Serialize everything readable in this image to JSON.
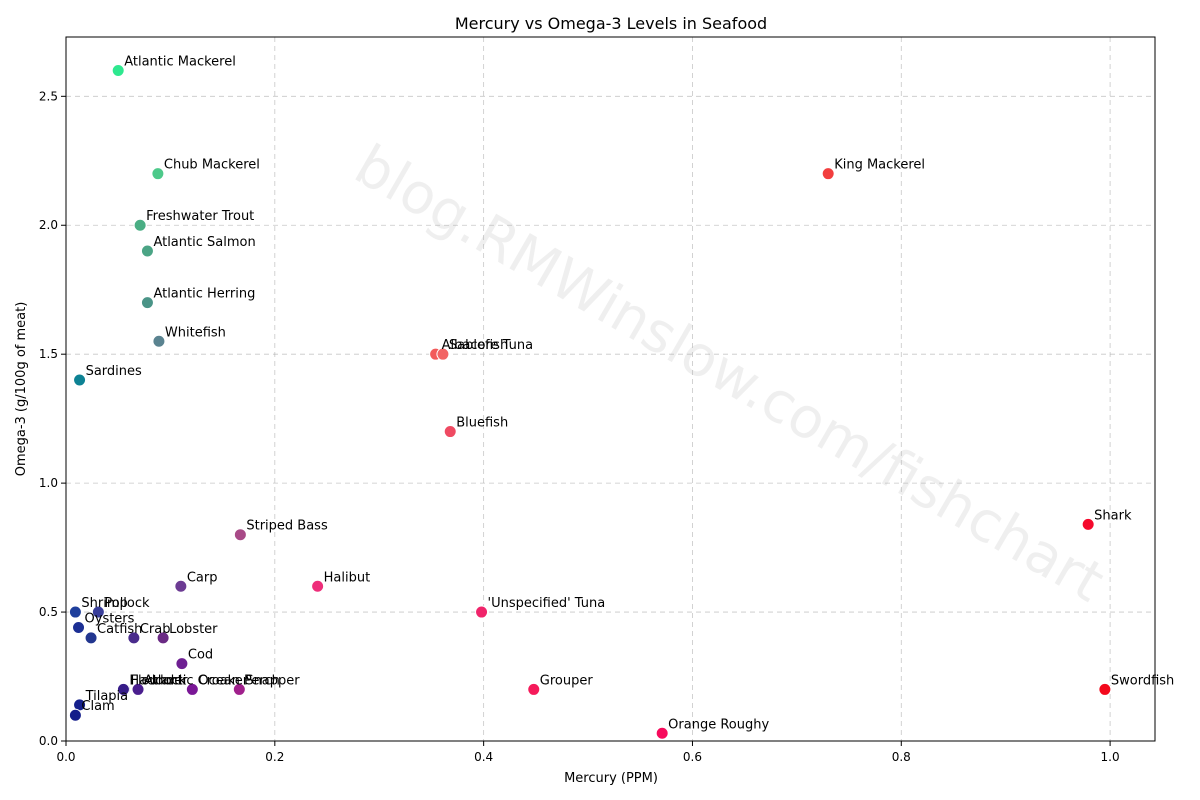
{
  "watermark": "blog.RMWinslow.com/fishchart",
  "chart_data": {
    "type": "scatter",
    "title": "Mercury vs Omega-3 Levels in Seafood",
    "xlabel": "Mercury (PPM)",
    "ylabel": "Omega-3 (g/100g of meat)",
    "xlim": [
      0.0,
      1.043
    ],
    "ylim": [
      0.0,
      2.73
    ],
    "xticks": [
      0.0,
      0.2,
      0.4,
      0.6,
      0.8,
      1.0
    ],
    "yticks": [
      0.0,
      0.5,
      1.0,
      1.5,
      2.0,
      2.5
    ],
    "grid": true,
    "points": [
      {
        "name": "Atlantic Mackerel",
        "x": 0.05,
        "y": 2.6,
        "color": "#2ee88f"
      },
      {
        "name": "Chub Mackerel",
        "x": 0.088,
        "y": 2.2,
        "color": "#4dc98a"
      },
      {
        "name": "King Mackerel",
        "x": 0.73,
        "y": 2.2,
        "color": "#f23e3e"
      },
      {
        "name": "Freshwater Trout",
        "x": 0.071,
        "y": 2.0,
        "color": "#4aae84"
      },
      {
        "name": "Atlantic Salmon",
        "x": 0.078,
        "y": 1.9,
        "color": "#4ba485"
      },
      {
        "name": "Atlantic Herring",
        "x": 0.078,
        "y": 1.7,
        "color": "#4a9487"
      },
      {
        "name": "Whitefish",
        "x": 0.089,
        "y": 1.55,
        "color": "#5a8390"
      },
      {
        "name": "Sardines",
        "x": 0.013,
        "y": 1.4,
        "color": "#0d8294"
      },
      {
        "name": "Albacore Tuna",
        "x": 0.354,
        "y": 1.5,
        "color": "#f25a5a"
      },
      {
        "name": "Sablefish",
        "x": 0.361,
        "y": 1.5,
        "color": "#f26464"
      },
      {
        "name": "Bluefish",
        "x": 0.368,
        "y": 1.2,
        "color": "#ef4a62"
      },
      {
        "name": "Shark",
        "x": 0.979,
        "y": 0.84,
        "color": "#f5092c"
      },
      {
        "name": "Striped Bass",
        "x": 0.167,
        "y": 0.8,
        "color": "#a84a87"
      },
      {
        "name": "Carp",
        "x": 0.11,
        "y": 0.6,
        "color": "#6c3b93"
      },
      {
        "name": "Halibut",
        "x": 0.241,
        "y": 0.6,
        "color": "#ee2e7a"
      },
      {
        "name": "Shrimp",
        "x": 0.009,
        "y": 0.5,
        "color": "#1f3f9c"
      },
      {
        "name": "Pollock",
        "x": 0.031,
        "y": 0.5,
        "color": "#3a3f9a"
      },
      {
        "name": "'Unspecified' Tuna",
        "x": 0.398,
        "y": 0.5,
        "color": "#f0246a"
      },
      {
        "name": "Oysters",
        "x": 0.012,
        "y": 0.44,
        "color": "#1c2f94"
      },
      {
        "name": "Catfish",
        "x": 0.024,
        "y": 0.4,
        "color": "#22368f"
      },
      {
        "name": "Crab",
        "x": 0.065,
        "y": 0.4,
        "color": "#4a2c8c"
      },
      {
        "name": "Lobster",
        "x": 0.093,
        "y": 0.4,
        "color": "#6a2a84"
      },
      {
        "name": "Cod",
        "x": 0.111,
        "y": 0.3,
        "color": "#6e1f92"
      },
      {
        "name": "Flounder",
        "x": 0.056,
        "y": 0.2,
        "color": "#3a1f8c"
      },
      {
        "name": "Haddock",
        "x": 0.055,
        "y": 0.2,
        "color": "#361c88"
      },
      {
        "name": "Atlantic Croaker",
        "x": 0.069,
        "y": 0.2,
        "color": "#4a1e8e"
      },
      {
        "name": "Ocean Perch",
        "x": 0.121,
        "y": 0.2,
        "color": "#7a1796"
      },
      {
        "name": "Snapper",
        "x": 0.166,
        "y": 0.2,
        "color": "#a0208c"
      },
      {
        "name": "Grouper",
        "x": 0.448,
        "y": 0.2,
        "color": "#f51a5a"
      },
      {
        "name": "Swordfish",
        "x": 0.995,
        "y": 0.2,
        "color": "#f3091c"
      },
      {
        "name": "Tilapia",
        "x": 0.013,
        "y": 0.14,
        "color": "#15208c"
      },
      {
        "name": "Clam",
        "x": 0.009,
        "y": 0.1,
        "color": "#131c8a"
      },
      {
        "name": "Orange Roughy",
        "x": 0.571,
        "y": 0.03,
        "color": "#f70a5c"
      }
    ]
  }
}
